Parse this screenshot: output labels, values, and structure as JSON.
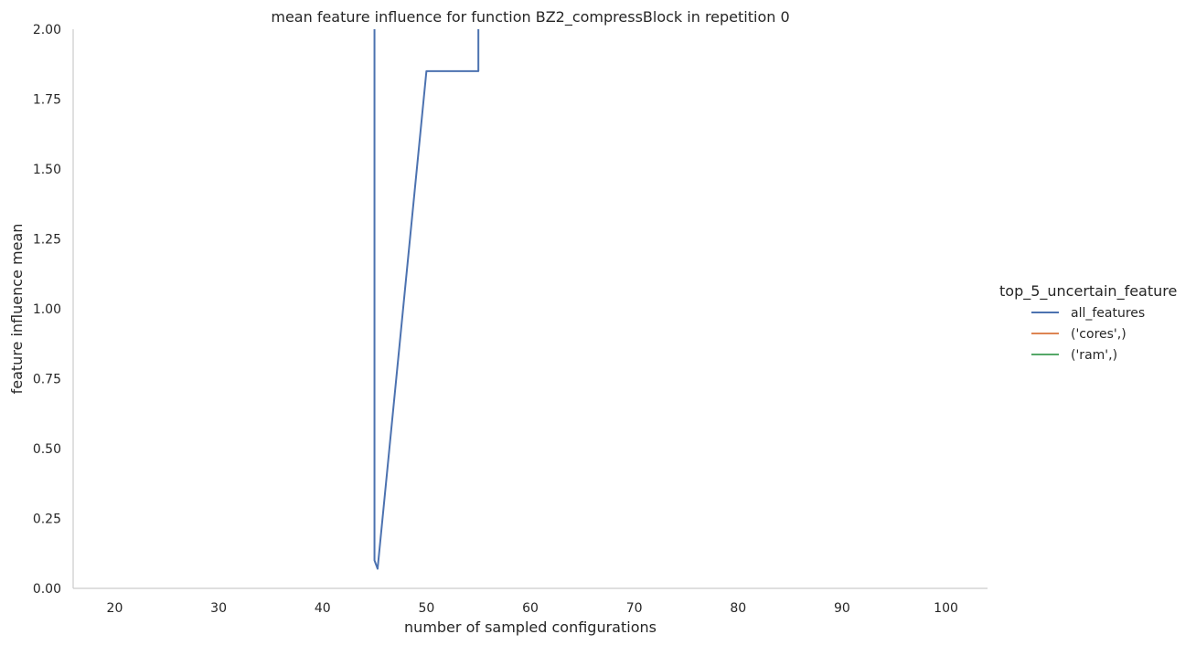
{
  "chart_data": {
    "type": "line",
    "title": "mean feature influence for function BZ2_compressBlock in repetition 0",
    "xlabel": "number of sampled configurations",
    "ylabel": "feature influence mean",
    "xlim": [
      16,
      104
    ],
    "ylim": [
      0,
      2.0
    ],
    "xticks": [
      20,
      30,
      40,
      50,
      60,
      70,
      80,
      90,
      100
    ],
    "yticks": [
      0.0,
      0.25,
      0.5,
      0.75,
      1.0,
      1.25,
      1.5,
      1.75,
      2.0
    ],
    "ytick_labels": [
      "0.00",
      "0.25",
      "0.50",
      "0.75",
      "1.00",
      "1.25",
      "1.50",
      "1.75",
      "2.00"
    ],
    "grid": false,
    "legend": {
      "title": "top_5_uncertain_feature",
      "placement": "right"
    },
    "series": [
      {
        "name": "all_features",
        "color": "#4c72b0",
        "x": [
          45,
          45,
          45,
          45.3,
          50,
          55,
          55,
          55
        ],
        "y": [
          2.6,
          2.0,
          0.1,
          0.07,
          1.85,
          1.85,
          2.0,
          2.6
        ]
      },
      {
        "name": "('cores',)",
        "color": "#dd8452",
        "x": [],
        "y": []
      },
      {
        "name": "('ram',)",
        "color": "#55a868",
        "x": [],
        "y": []
      }
    ]
  }
}
